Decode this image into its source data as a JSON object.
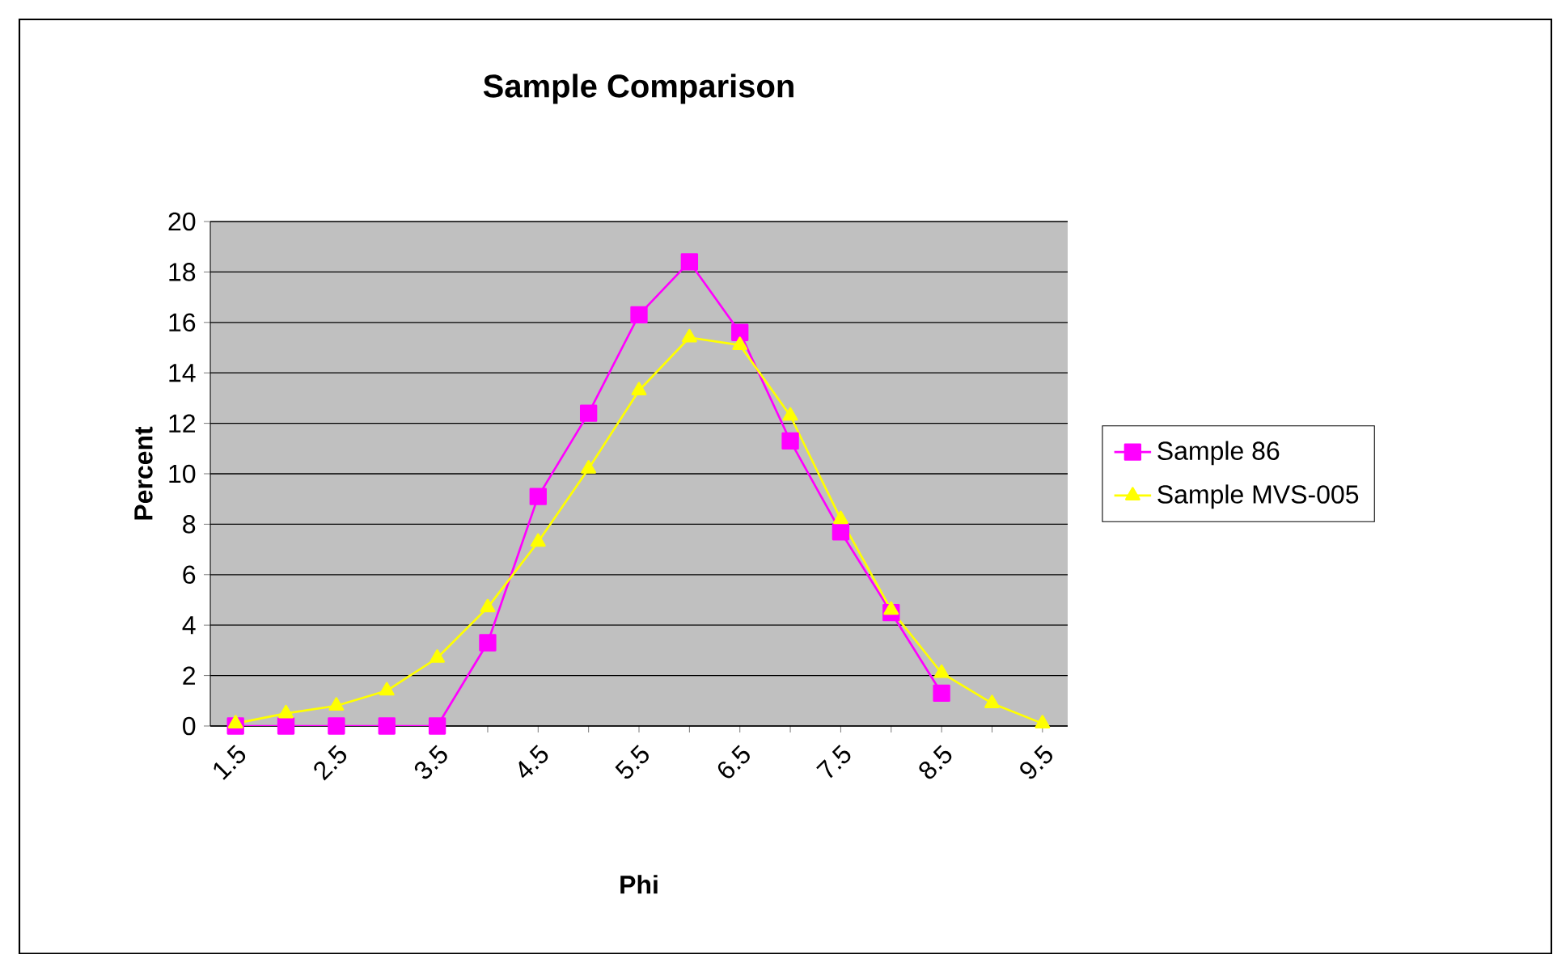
{
  "chart_data": {
    "type": "line",
    "title": "Sample Comparison",
    "xlabel": "Phi",
    "ylabel": "Percent",
    "categories": [
      "1.5",
      null,
      "2.5",
      null,
      "3.5",
      null,
      "4.5",
      null,
      "5.5",
      null,
      "6.5",
      null,
      "7.5",
      null,
      "8.5",
      null,
      "9.5"
    ],
    "series": [
      {
        "name": "Sample 86",
        "color": "#ff00ff",
        "marker": "square",
        "values": [
          0,
          0,
          0,
          0,
          0,
          3.3,
          9.1,
          12.4,
          16.3,
          18.4,
          15.6,
          11.3,
          7.7,
          4.5,
          1.3,
          null,
          null
        ]
      },
      {
        "name": "Sample MVS-005",
        "color": "#ffff00",
        "marker": "triangle",
        "values": [
          0.1,
          0.5,
          0.8,
          1.4,
          2.7,
          4.7,
          7.3,
          10.2,
          13.3,
          15.4,
          15.1,
          12.3,
          8.2,
          4.6,
          2.1,
          0.9,
          0.1
        ]
      }
    ],
    "ylim": [
      0,
      20
    ],
    "yticks": [
      0,
      2,
      4,
      6,
      8,
      10,
      12,
      14,
      16,
      18,
      20
    ],
    "grid": "y",
    "legend": "right",
    "line_style": "solid"
  }
}
